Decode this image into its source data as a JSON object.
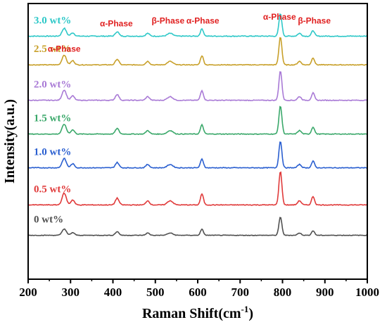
{
  "chart_data": {
    "type": "line",
    "xlabel": "Raman Shift(cm",
    "xlabel_sup": "-1",
    "xlabel_close": ")",
    "ylabel": "Intensity(a.u.)",
    "xlim": [
      200,
      1000
    ],
    "xticks": [
      "200",
      "300",
      "400",
      "500",
      "600",
      "700",
      "800",
      "900",
      "1000"
    ],
    "y_ticks_shown": false,
    "grid": false,
    "peaks": [
      {
        "center": 285,
        "height": 14,
        "width": 7
      },
      {
        "center": 305,
        "height": 6,
        "width": 6
      },
      {
        "center": 410,
        "height": 8,
        "width": 6
      },
      {
        "center": 482,
        "height": 5,
        "width": 6
      },
      {
        "center": 535,
        "height": 5,
        "width": 9
      },
      {
        "center": 610,
        "height": 13,
        "width": 5
      },
      {
        "center": 795,
        "height": 40,
        "width": 5
      },
      {
        "center": 840,
        "height": 5,
        "width": 6
      },
      {
        "center": 872,
        "height": 10,
        "width": 5
      }
    ],
    "series": [
      {
        "name": "3.0 wt%",
        "color": "#2ec8c8",
        "baseline": 0.55,
        "scale": 0.8,
        "noise": 0.6
      },
      {
        "name": "2.5 wt%",
        "color": "#c8a02a",
        "baseline": 1.4,
        "scale": 1.0,
        "noise": 0.5
      },
      {
        "name": "2.0 wt%",
        "color": "#a97ad6",
        "baseline": 2.45,
        "scale": 1.05,
        "noise": 0.5
      },
      {
        "name": "1.5 wt%",
        "color": "#3aa86a",
        "baseline": 3.45,
        "scale": 1.0,
        "noise": 0.5
      },
      {
        "name": "1.0 wt%",
        "color": "#2a5fd0",
        "baseline": 4.45,
        "scale": 0.95,
        "noise": 0.5
      },
      {
        "name": "0.5 wt%",
        "color": "#e03a3a",
        "baseline": 5.55,
        "scale": 1.2,
        "noise": 0.5
      },
      {
        "name": "0 wt%",
        "color": "#505050",
        "baseline": 6.45,
        "scale": 0.65,
        "noise": 0.4
      }
    ],
    "annotations": [
      {
        "text": "α-Phase",
        "x": 285,
        "row": 1.05
      },
      {
        "text": "α-Phase",
        "x": 408,
        "row": 0.3
      },
      {
        "text": "β-Phase",
        "x": 530,
        "row": 0.22
      },
      {
        "text": "α-Phase",
        "x": 612,
        "row": 0.22
      },
      {
        "text": "α-Phase",
        "x": 793,
        "row": 0.1
      },
      {
        "text": "β-Phase",
        "x": 875,
        "row": 0.22
      }
    ],
    "annotation_color": "#e02020"
  }
}
